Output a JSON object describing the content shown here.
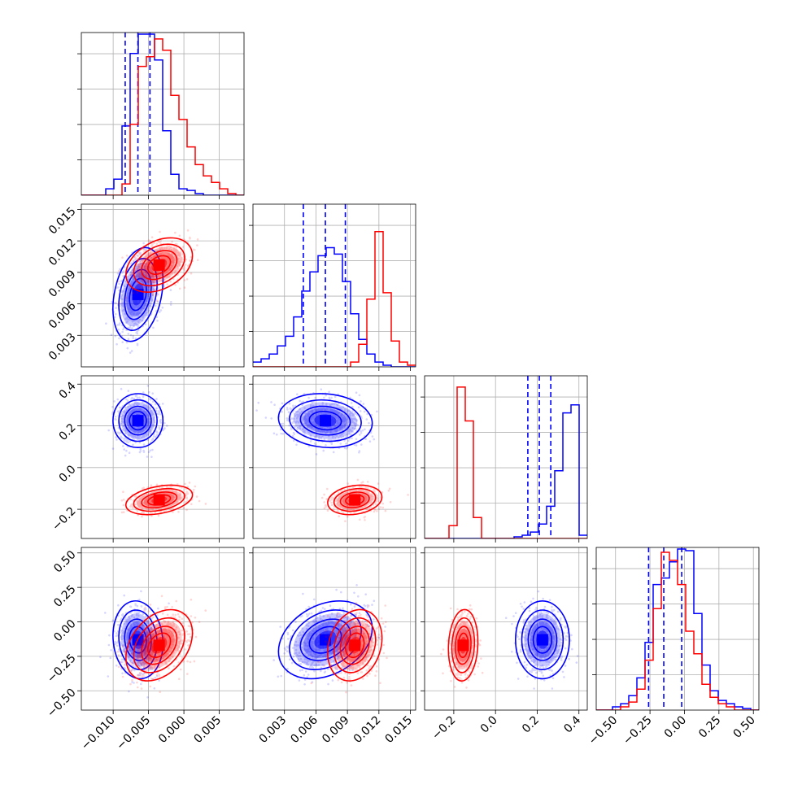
{
  "chart_data": {
    "type": "corner",
    "grid": true,
    "colors": {
      "blue": "#0000ff",
      "red": "#ff0000"
    },
    "parameters": [
      {
        "range": [
          -0.0145,
          0.0085
        ],
        "ticks": [
          -0.01,
          -0.005,
          0.0,
          0.005
        ],
        "tick_labels": [
          "−0.010",
          "−0.005",
          "0.000",
          "0.005"
        ]
      },
      {
        "range": [
          0.0,
          0.0155
        ],
        "ticks": [
          0.003,
          0.006,
          0.009,
          0.012,
          0.015
        ],
        "tick_labels": [
          "0.003",
          "0.006",
          "0.009",
          "0.012",
          "0.015"
        ]
      },
      {
        "range": [
          -0.34,
          0.44
        ],
        "ticks": [
          -0.2,
          0.0,
          0.2,
          0.4
        ],
        "tick_labels": [
          "−0.2",
          "0.0",
          "0.2",
          "0.4"
        ]
      },
      {
        "range": [
          -0.64,
          0.54
        ],
        "ticks": [
          -0.5,
          -0.25,
          0.0,
          0.25,
          0.5
        ],
        "tick_labels": [
          "−0.50",
          "−0.25",
          "0.00",
          "0.25",
          "0.50"
        ]
      }
    ],
    "series": [
      {
        "color": "blue",
        "centers": [
          -0.0065,
          0.0069,
          0.225,
          -0.13
        ],
        "widths": [
          0.0015,
          0.0019,
          0.055,
          0.12
        ],
        "corr": [
          [
            0.3,
            0.0,
            -0.1
          ],
          [
            -0.1,
            0.3
          ],
          [
            0.0
          ]
        ],
        "quantiles": [
          [
            -0.0083,
            -0.0065,
            -0.0048
          ],
          [
            0.0048,
            0.0069,
            0.0088
          ],
          [
            0.155,
            0.21,
            0.265
          ],
          [
            -0.26,
            -0.15,
            -0.02
          ]
        ],
        "hist": [
          [
            0.0,
            0.0,
            0.0,
            0.04,
            0.1,
            0.43,
            0.88,
            1.0,
            1.0,
            0.84,
            0.4,
            0.13,
            0.04,
            0.03,
            0.01,
            0.0,
            0.0,
            0.0,
            0.0,
            0.0
          ],
          [
            0.03,
            0.05,
            0.08,
            0.13,
            0.19,
            0.31,
            0.47,
            0.59,
            0.69,
            0.74,
            0.7,
            0.53,
            0.33,
            0.17,
            0.08,
            0.03,
            0.01,
            0.0,
            0.0,
            0.0
          ],
          [
            0.0,
            0.0,
            0.0,
            0.0,
            0.0,
            0.0,
            0.0,
            0.0,
            0.0,
            0.0,
            0.0,
            0.01,
            0.02,
            0.04,
            0.09,
            0.2,
            0.42,
            0.78,
            0.83,
            0.02
          ],
          [
            0.0,
            0.0,
            0.02,
            0.04,
            0.09,
            0.2,
            0.42,
            0.78,
            0.82,
            0.92,
            1.0,
            0.99,
            0.6,
            0.28,
            0.12,
            0.06,
            0.04,
            0.02,
            0.01,
            0.0
          ]
        ]
      },
      {
        "color": "red",
        "centers": [
          -0.0035,
          0.0097,
          -0.155,
          -0.17
        ],
        "widths": [
          0.002,
          0.0011,
          0.03,
          0.11
        ],
        "corr": [
          [
            0.35,
            0.35,
            0.35
          ],
          [
            0.2,
            0.2
          ],
          [
            0.1
          ]
        ],
        "quantiles": null,
        "hist": [
          [
            0.0,
            0.0,
            0.0,
            0.0,
            0.0,
            0.07,
            0.44,
            0.8,
            0.86,
            0.97,
            0.9,
            0.62,
            0.47,
            0.3,
            0.19,
            0.12,
            0.08,
            0.04,
            0.01,
            0.0
          ],
          [
            0.0,
            0.0,
            0.0,
            0.0,
            0.0,
            0.0,
            0.0,
            0.0,
            0.0,
            0.0,
            0.0,
            0.0,
            0.03,
            0.14,
            0.42,
            0.84,
            0.46,
            0.16,
            0.03,
            0.01
          ],
          [
            0.0,
            0.0,
            0.0,
            0.08,
            0.94,
            0.73,
            0.13,
            0.0,
            0.0,
            0.0,
            0.0,
            0.0,
            0.0,
            0.0,
            0.0,
            0.0,
            0.0,
            0.0,
            0.0,
            0.0
          ],
          [
            0.0,
            0.0,
            0.0,
            0.02,
            0.05,
            0.13,
            0.31,
            0.63,
            0.98,
            0.93,
            0.78,
            0.49,
            0.35,
            0.16,
            0.08,
            0.04,
            0.02,
            0.0,
            0.0,
            0.0
          ]
        ]
      }
    ]
  }
}
